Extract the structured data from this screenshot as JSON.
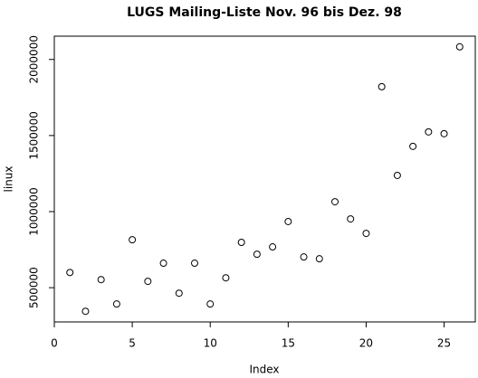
{
  "chart_data": {
    "type": "scatter",
    "title": "LUGS Mailing-Liste Nov. 96 bis Dez. 98",
    "x_label": "Index",
    "y_label": "linux",
    "x": [
      1,
      2,
      3,
      4,
      5,
      6,
      7,
      8,
      9,
      10,
      11,
      12,
      13,
      14,
      15,
      16,
      17,
      18,
      19,
      20,
      21,
      22,
      23,
      24,
      25,
      26
    ],
    "values": [
      600000,
      345000,
      553000,
      393000,
      815000,
      542000,
      661000,
      464000,
      661000,
      393000,
      565000,
      798000,
      720000,
      768000,
      935000,
      702000,
      690000,
      1065000,
      952000,
      857000,
      1821000,
      1238000,
      1429000,
      1524000,
      1512000,
      2083000
    ],
    "color": "#000000",
    "xlim": [
      0,
      27
    ],
    "xticks": [
      0,
      5,
      10,
      15,
      20,
      25
    ],
    "ylim": [
      275000,
      2153000
    ],
    "yticks": [
      500000,
      1000000,
      1500000,
      2000000
    ],
    "grid": false
  }
}
